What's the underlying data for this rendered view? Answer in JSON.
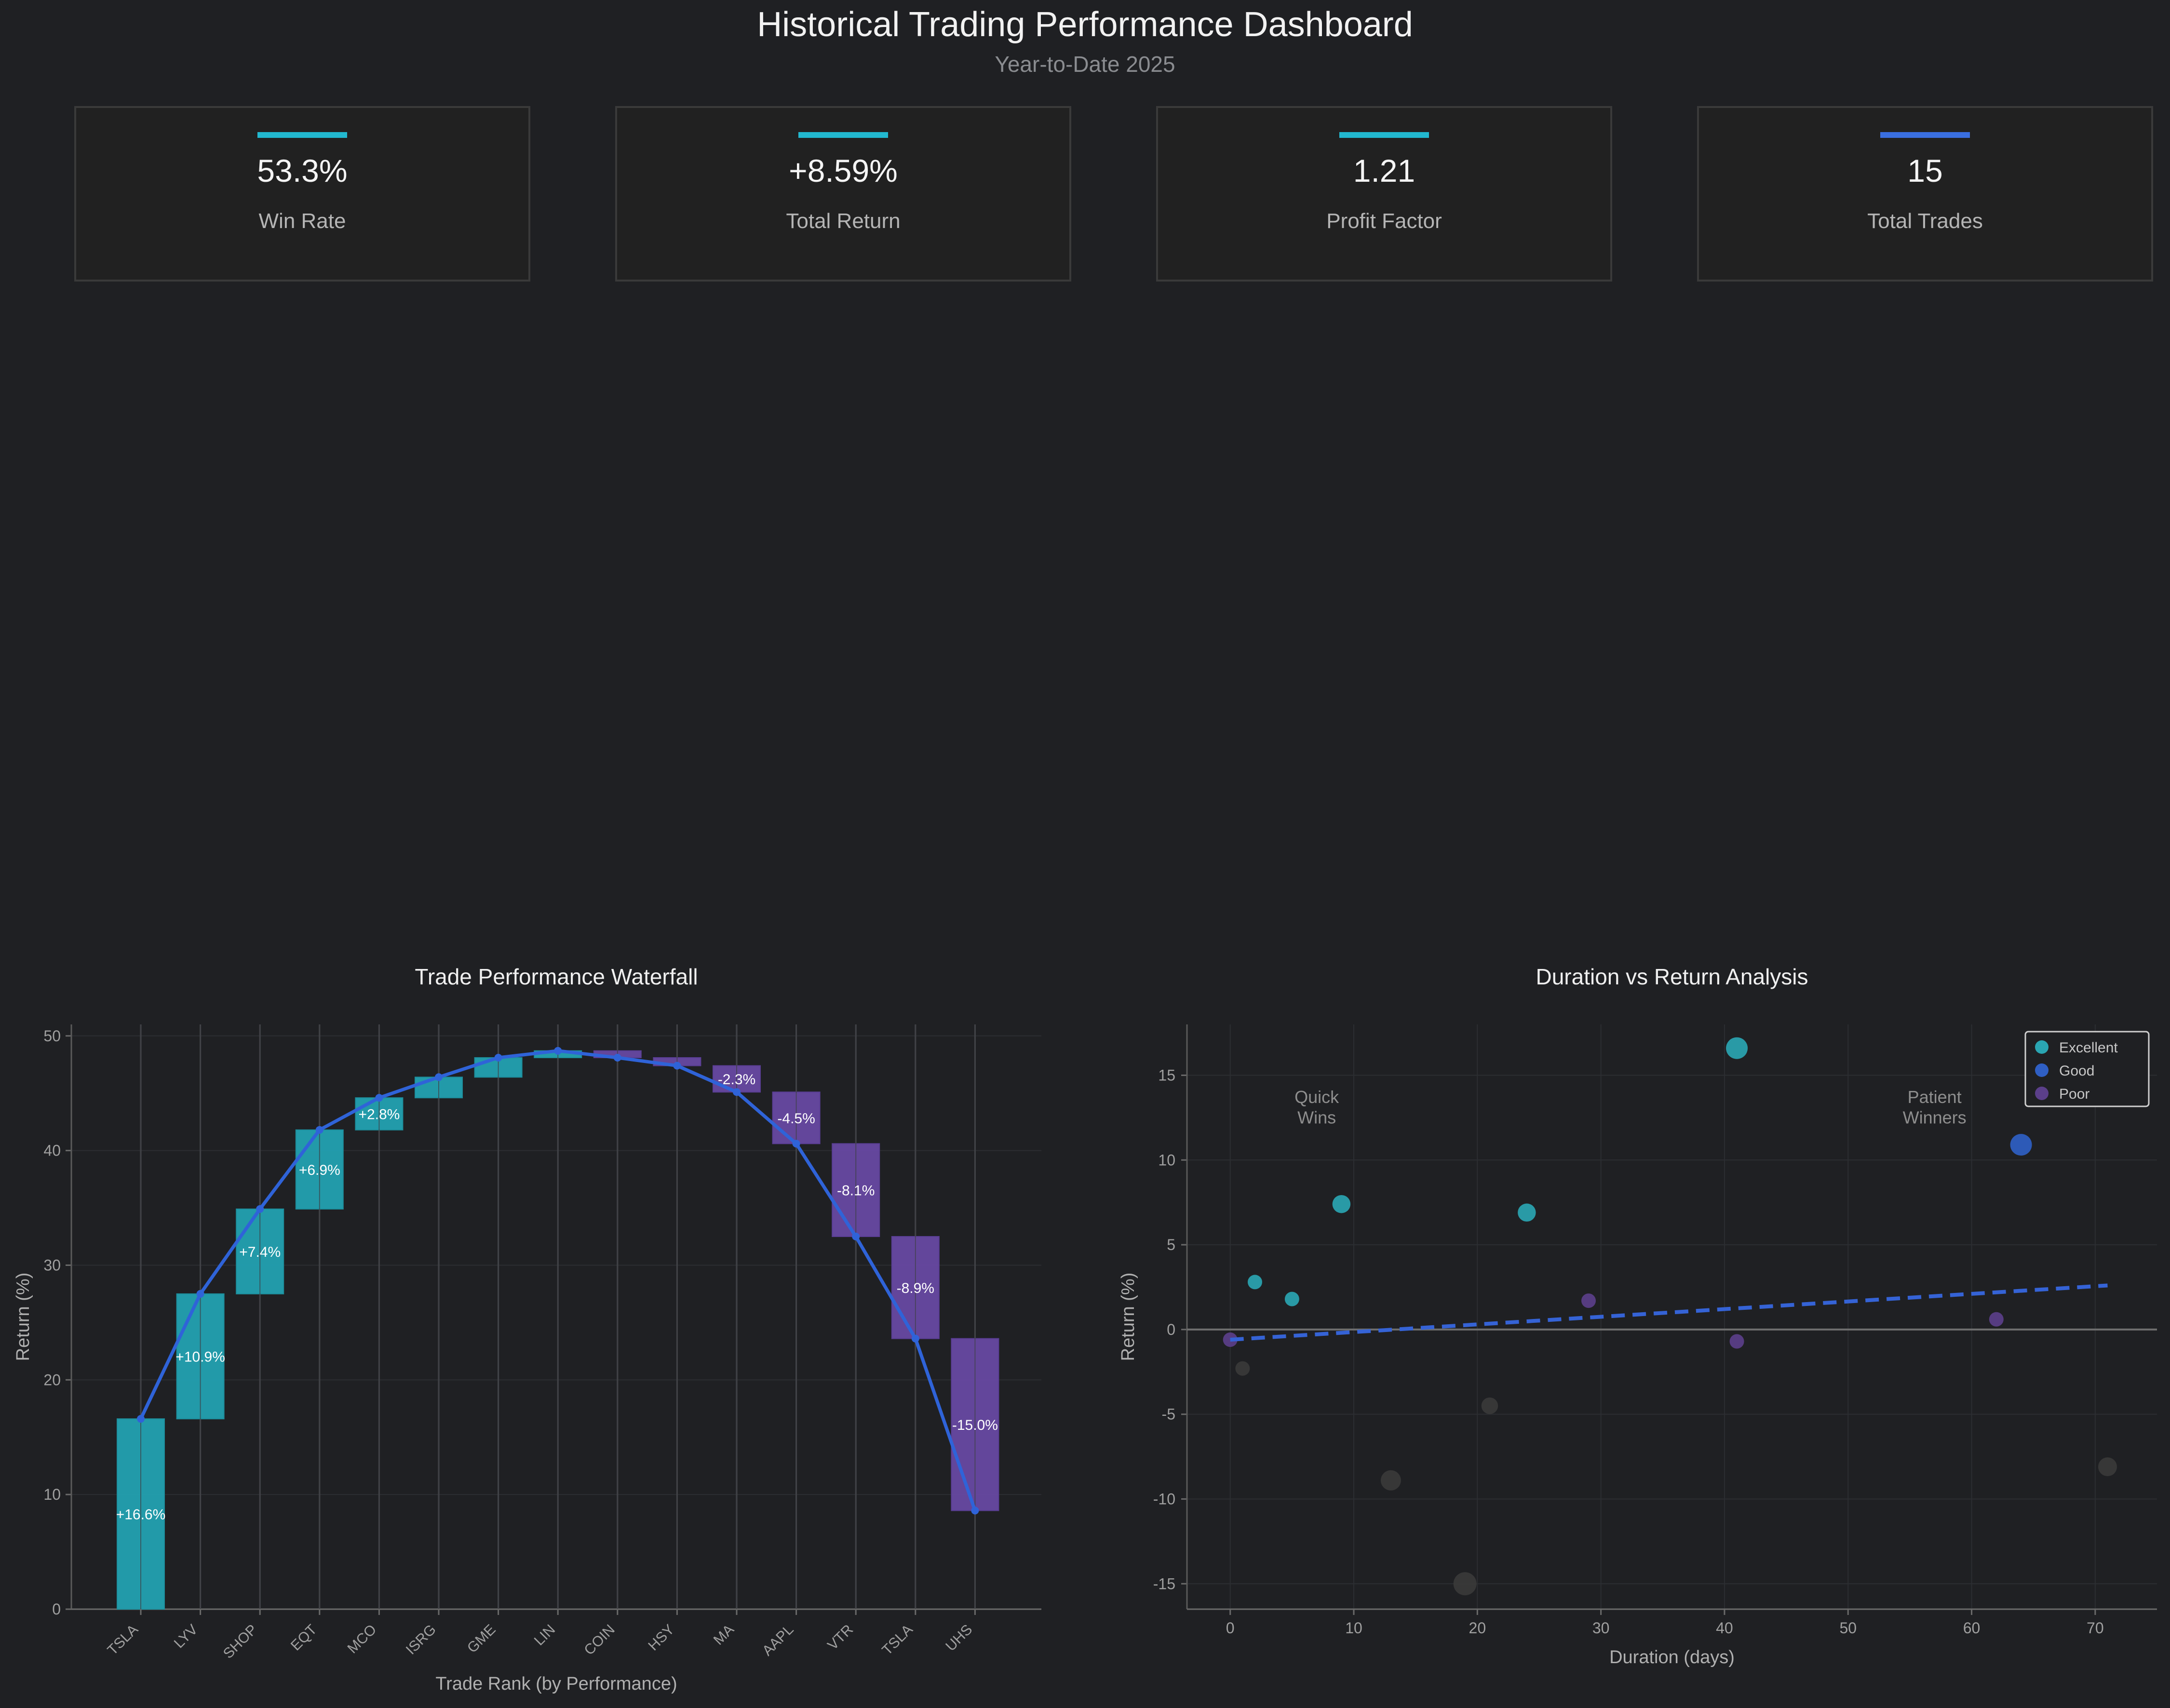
{
  "header": {
    "title": "Historical Trading Performance Dashboard",
    "subtitle": "Year-to-Date 2025"
  },
  "kpis": [
    {
      "value": "53.3%",
      "label": "Win Rate",
      "accent": "#22b8cf"
    },
    {
      "value": "+8.59%",
      "label": "Total Return",
      "accent": "#22b8cf"
    },
    {
      "value": "1.21",
      "label": "Profit Factor",
      "accent": "#22b8cf"
    },
    {
      "value": "15",
      "label": "Total Trades",
      "accent": "#3a6fe0"
    }
  ],
  "colors": {
    "win": "#22a7b8",
    "loss": "#6a4aa8",
    "line": "#2f63d8",
    "excellent": "#2aa5b2",
    "good": "#2f5fc4",
    "poor": "#5b3f8a",
    "neutral": "#3a3a3a",
    "trend": "#3563d6"
  },
  "chart_data": [
    {
      "type": "bar",
      "title": "Trade Performance Waterfall",
      "xlabel": "Trade Rank (by Performance)",
      "ylabel": "Return (%)",
      "ylim": [
        0,
        51
      ],
      "yticks": [
        0,
        10,
        20,
        30,
        40,
        50
      ],
      "grid": true,
      "categories": [
        "TSLA",
        "LYV",
        "SHOP",
        "EQT",
        "MCO",
        "ISRG",
        "GME",
        "LIN",
        "COIN",
        "HSY",
        "MA",
        "AAPL",
        "VTR",
        "TSLA",
        "UHS"
      ],
      "values": [
        16.6,
        10.9,
        7.4,
        6.9,
        2.8,
        1.8,
        1.7,
        0.6,
        -0.6,
        -0.7,
        -2.3,
        -4.5,
        -8.1,
        -8.9,
        -15.0
      ],
      "data_labels": [
        "+16.6%",
        "+10.9%",
        "+7.4%",
        "+6.9%",
        "+2.8%",
        "",
        "",
        "",
        "",
        "",
        "-2.3%",
        "-4.5%",
        "-8.1%",
        "-8.9%",
        "-15.0%"
      ],
      "cumulative": [
        16.6,
        27.5,
        34.9,
        41.8,
        44.6,
        46.4,
        48.1,
        48.7,
        48.1,
        47.4,
        45.1,
        40.6,
        32.5,
        23.6,
        8.6
      ]
    },
    {
      "type": "scatter",
      "title": "Duration vs Return Analysis",
      "xlabel": "Duration (days)",
      "ylabel": "Return (%)",
      "xlim": [
        -3.5,
        75
      ],
      "ylim": [
        -16.5,
        18
      ],
      "xticks": [
        0,
        10,
        20,
        30,
        40,
        50,
        60,
        70
      ],
      "yticks": [
        -15,
        -10,
        -5,
        0,
        5,
        10,
        15
      ],
      "grid": true,
      "legend": {
        "position": "top-right",
        "entries": [
          "Excellent",
          "Good",
          "Poor"
        ]
      },
      "annotations": [
        {
          "text": "Quick",
          "x": 7,
          "y": 13.7
        },
        {
          "text": "Wins",
          "x": 7,
          "y": 12.5
        },
        {
          "text": "Patient",
          "x": 57,
          "y": 13.7
        },
        {
          "text": "Winners",
          "x": 57,
          "y": 12.5
        }
      ],
      "trendline": {
        "x": [
          0,
          71
        ],
        "y": [
          -0.6,
          2.6
        ]
      },
      "points": [
        {
          "x": 41,
          "y": 16.6,
          "category": "Excellent",
          "size": 3
        },
        {
          "x": 64,
          "y": 10.9,
          "category": "Good",
          "size": 3
        },
        {
          "x": 9,
          "y": 7.4,
          "category": "Excellent",
          "size": 2.5
        },
        {
          "x": 24,
          "y": 6.9,
          "category": "Excellent",
          "size": 2.5
        },
        {
          "x": 2,
          "y": 2.8,
          "category": "Excellent",
          "size": 2
        },
        {
          "x": 5,
          "y": 1.8,
          "category": "Excellent",
          "size": 2
        },
        {
          "x": 29,
          "y": 1.7,
          "category": "Poor",
          "size": 2
        },
        {
          "x": 62,
          "y": 0.6,
          "category": "Poor",
          "size": 2
        },
        {
          "x": 0,
          "y": -0.6,
          "category": "Poor",
          "size": 2
        },
        {
          "x": 41,
          "y": -0.7,
          "category": "Poor",
          "size": 2
        },
        {
          "x": 1,
          "y": -2.3,
          "category": "Neutral",
          "size": 2
        },
        {
          "x": 21,
          "y": -4.5,
          "category": "Neutral",
          "size": 2.3
        },
        {
          "x": 71,
          "y": -8.1,
          "category": "Neutral",
          "size": 2.6
        },
        {
          "x": 13,
          "y": -8.9,
          "category": "Neutral",
          "size": 2.8
        },
        {
          "x": 19,
          "y": -15.0,
          "category": "Neutral",
          "size": 3.2
        }
      ]
    }
  ]
}
